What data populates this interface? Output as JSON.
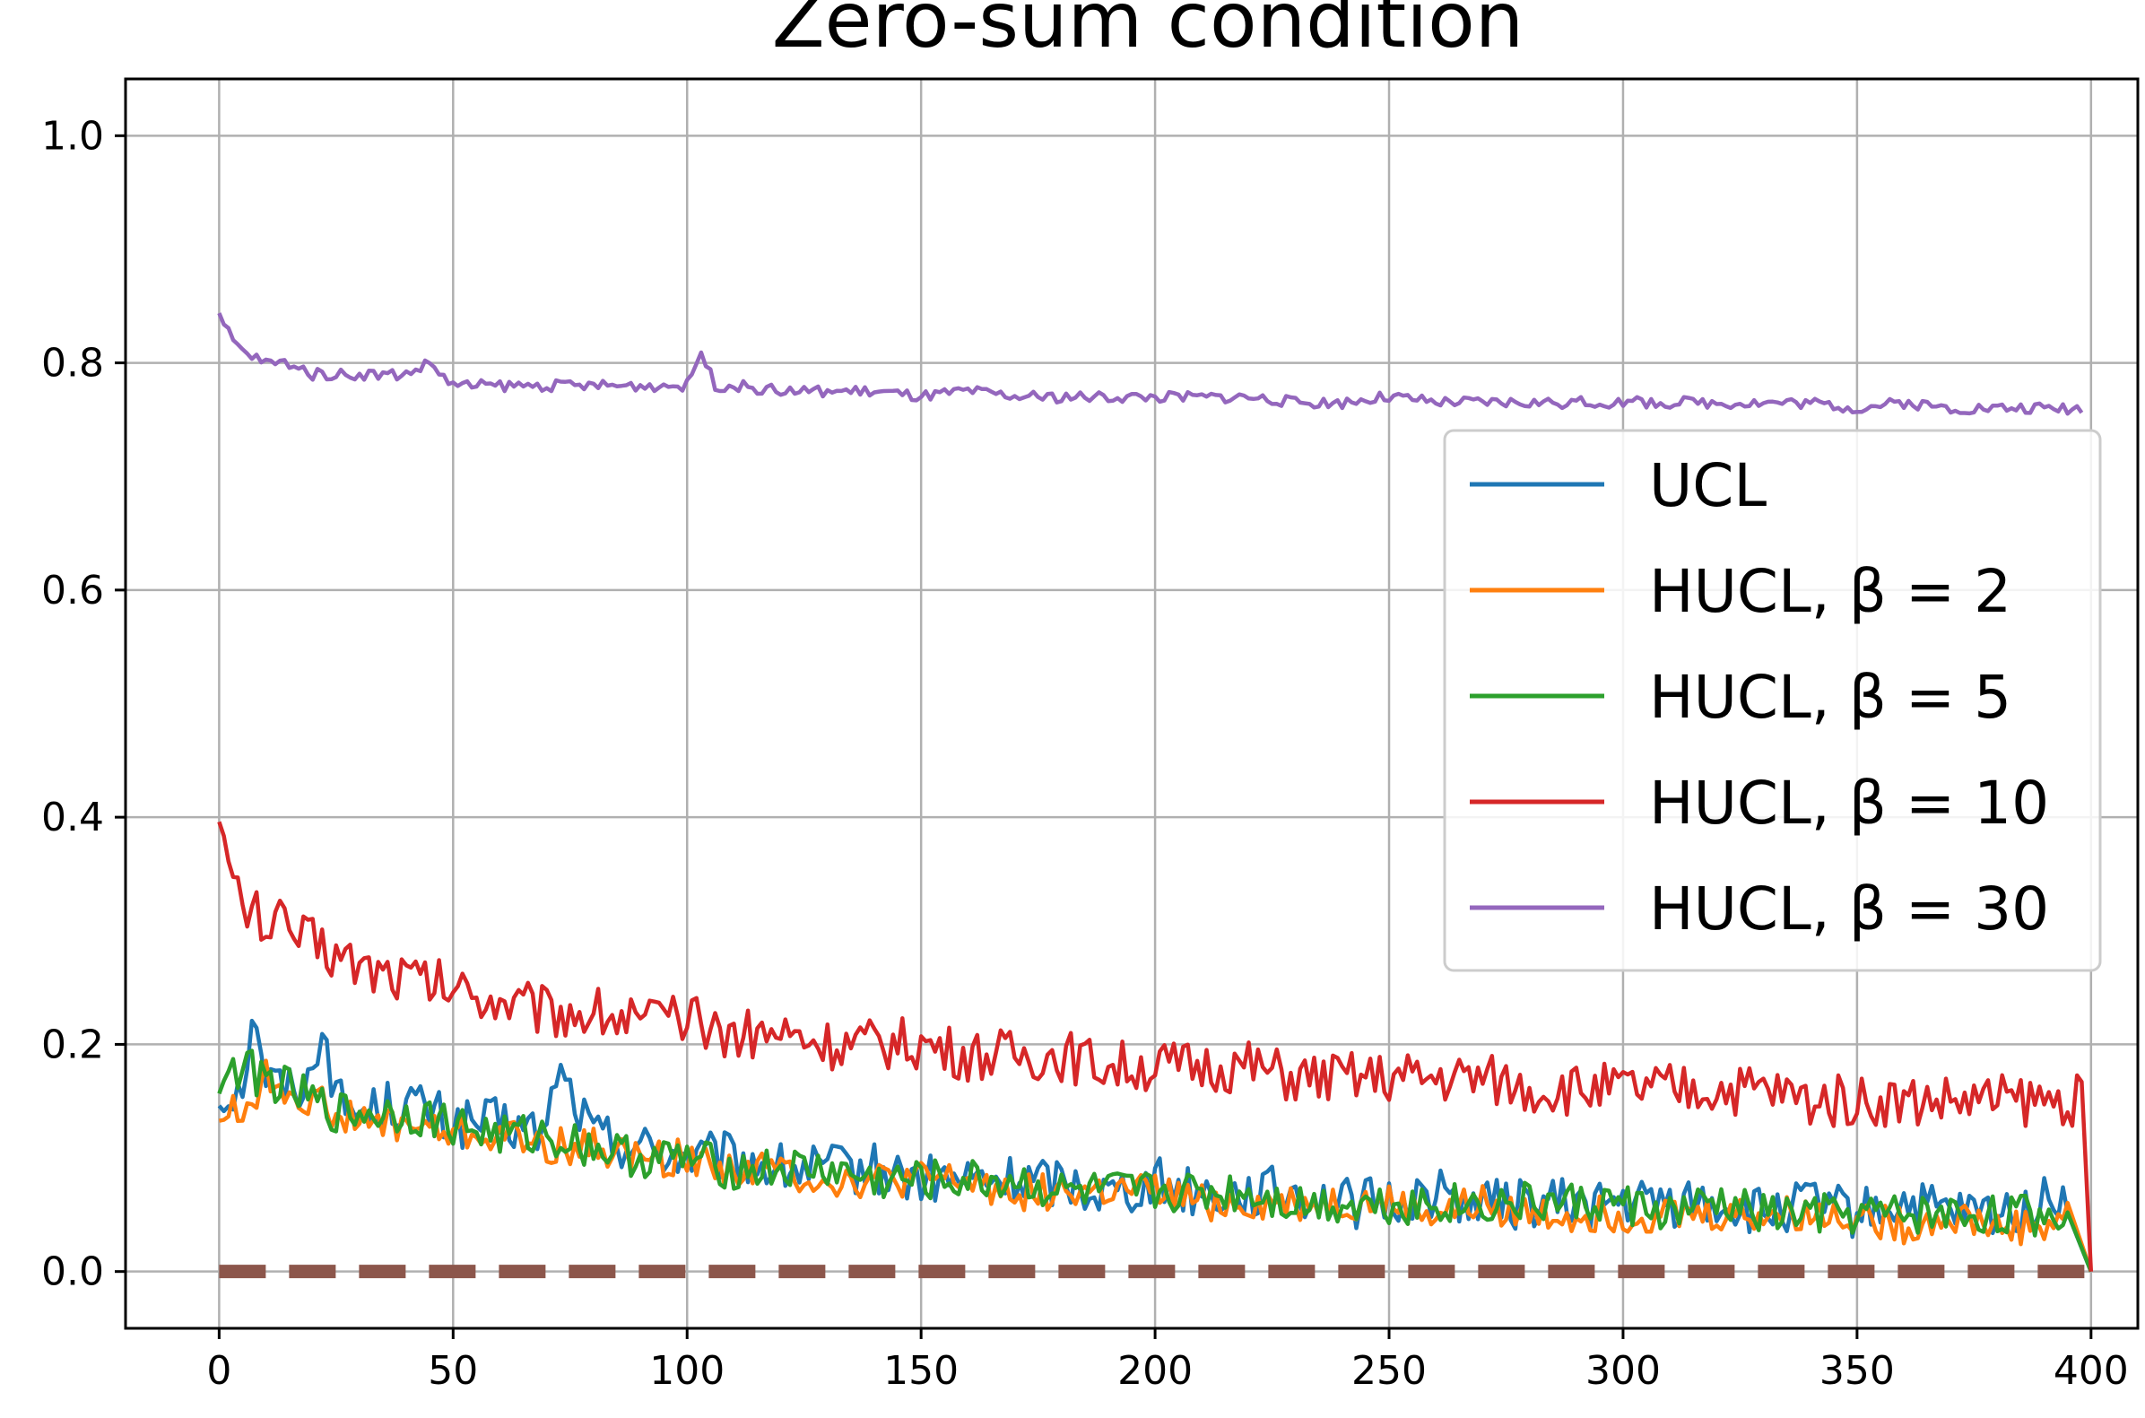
{
  "chart_data": {
    "type": "line",
    "title": "Zero-sum condition",
    "xlabel": "",
    "ylabel": "",
    "xlim": [
      -20,
      410
    ],
    "ylim": [
      -0.05,
      1.05
    ],
    "x_ticks": [
      0,
      50,
      100,
      150,
      200,
      250,
      300,
      350,
      400
    ],
    "x_tick_labels": [
      "0",
      "50",
      "100",
      "150",
      "200",
      "250",
      "300",
      "350",
      "400"
    ],
    "y_ticks": [
      0.0,
      0.2,
      0.4,
      0.6,
      0.8,
      1.0
    ],
    "y_tick_labels": [
      "0.0",
      "0.2",
      "0.4",
      "0.6",
      "0.8",
      "1.0"
    ],
    "grid": true,
    "legend_position": "right",
    "series": [
      {
        "name": "UCL",
        "color": "#1f77b4",
        "x": [
          0,
          5,
          8,
          10,
          15,
          20,
          22,
          25,
          30,
          40,
          50,
          60,
          70,
          72,
          80,
          90,
          100,
          110,
          120,
          130,
          140,
          150,
          160,
          170,
          180,
          190,
          200,
          210,
          220,
          230,
          240,
          250,
          260,
          270,
          280,
          290,
          300,
          310,
          320,
          330,
          340,
          350,
          360,
          370,
          380,
          390,
          395,
          400
        ],
        "y": [
          0.15,
          0.17,
          0.23,
          0.17,
          0.16,
          0.17,
          0.23,
          0.15,
          0.14,
          0.15,
          0.13,
          0.13,
          0.12,
          0.18,
          0.12,
          0.11,
          0.1,
          0.1,
          0.09,
          0.09,
          0.09,
          0.08,
          0.08,
          0.08,
          0.08,
          0.07,
          0.08,
          0.07,
          0.07,
          0.07,
          0.06,
          0.06,
          0.07,
          0.06,
          0.06,
          0.06,
          0.06,
          0.06,
          0.06,
          0.05,
          0.06,
          0.05,
          0.06,
          0.05,
          0.05,
          0.06,
          0.07,
          0.0
        ]
      },
      {
        "name": "HUCL, β = 2",
        "color": "#ff7f0e",
        "x": [
          0,
          5,
          10,
          15,
          20,
          25,
          30,
          40,
          50,
          60,
          70,
          80,
          90,
          100,
          110,
          120,
          130,
          140,
          150,
          160,
          170,
          180,
          190,
          200,
          210,
          220,
          230,
          240,
          250,
          260,
          270,
          280,
          290,
          300,
          310,
          320,
          330,
          340,
          350,
          360,
          370,
          380,
          390,
          395,
          400
        ],
        "y": [
          0.14,
          0.14,
          0.17,
          0.16,
          0.15,
          0.14,
          0.13,
          0.13,
          0.12,
          0.12,
          0.11,
          0.11,
          0.1,
          0.1,
          0.09,
          0.09,
          0.08,
          0.08,
          0.08,
          0.08,
          0.07,
          0.07,
          0.07,
          0.07,
          0.06,
          0.06,
          0.06,
          0.06,
          0.06,
          0.05,
          0.06,
          0.05,
          0.05,
          0.05,
          0.05,
          0.05,
          0.05,
          0.05,
          0.05,
          0.04,
          0.05,
          0.04,
          0.04,
          0.05,
          0.0
        ]
      },
      {
        "name": "HUCL, β = 5",
        "color": "#2ca02c",
        "x": [
          0,
          5,
          10,
          15,
          20,
          25,
          30,
          40,
          50,
          60,
          70,
          80,
          90,
          100,
          110,
          120,
          130,
          140,
          150,
          160,
          170,
          180,
          190,
          200,
          210,
          220,
          230,
          240,
          250,
          260,
          270,
          280,
          290,
          300,
          310,
          320,
          330,
          340,
          350,
          360,
          370,
          380,
          390,
          395,
          400
        ],
        "y": [
          0.17,
          0.18,
          0.17,
          0.16,
          0.15,
          0.14,
          0.14,
          0.14,
          0.13,
          0.12,
          0.12,
          0.11,
          0.1,
          0.1,
          0.09,
          0.09,
          0.09,
          0.08,
          0.08,
          0.08,
          0.08,
          0.07,
          0.07,
          0.07,
          0.07,
          0.07,
          0.06,
          0.06,
          0.06,
          0.06,
          0.06,
          0.06,
          0.06,
          0.06,
          0.05,
          0.06,
          0.05,
          0.05,
          0.05,
          0.05,
          0.05,
          0.05,
          0.05,
          0.05,
          0.0
        ]
      },
      {
        "name": "HUCL, β = 10",
        "color": "#d62728",
        "x": [
          0,
          2,
          5,
          10,
          15,
          20,
          25,
          30,
          40,
          50,
          60,
          70,
          80,
          90,
          100,
          110,
          120,
          130,
          140,
          150,
          160,
          170,
          180,
          190,
          200,
          210,
          220,
          230,
          240,
          250,
          260,
          270,
          280,
          290,
          300,
          310,
          320,
          330,
          340,
          350,
          360,
          370,
          380,
          390,
          398,
          400
        ],
        "y": [
          0.42,
          0.35,
          0.32,
          0.31,
          0.3,
          0.29,
          0.28,
          0.27,
          0.26,
          0.25,
          0.24,
          0.23,
          0.23,
          0.22,
          0.22,
          0.21,
          0.21,
          0.2,
          0.2,
          0.2,
          0.19,
          0.19,
          0.19,
          0.18,
          0.18,
          0.18,
          0.18,
          0.17,
          0.17,
          0.17,
          0.17,
          0.17,
          0.16,
          0.16,
          0.16,
          0.16,
          0.16,
          0.16,
          0.15,
          0.15,
          0.15,
          0.15,
          0.15,
          0.15,
          0.15,
          0.0
        ]
      },
      {
        "name": "HUCL, β = 30",
        "color": "#9467bd",
        "x": [
          0,
          3,
          5,
          10,
          15,
          20,
          25,
          30,
          40,
          45,
          50,
          60,
          70,
          80,
          90,
          100,
          103,
          106,
          110,
          120,
          130,
          140,
          150,
          160,
          170,
          180,
          190,
          200,
          210,
          220,
          230,
          240,
          250,
          260,
          270,
          280,
          290,
          300,
          310,
          320,
          330,
          340,
          350,
          360,
          370,
          380,
          390,
          398
        ],
        "y": [
          0.84,
          0.82,
          0.81,
          0.8,
          0.8,
          0.79,
          0.79,
          0.79,
          0.79,
          0.8,
          0.78,
          0.78,
          0.78,
          0.78,
          0.78,
          0.78,
          0.81,
          0.78,
          0.78,
          0.775,
          0.775,
          0.775,
          0.77,
          0.775,
          0.77,
          0.77,
          0.77,
          0.77,
          0.77,
          0.77,
          0.765,
          0.765,
          0.77,
          0.765,
          0.765,
          0.765,
          0.765,
          0.765,
          0.765,
          0.765,
          0.765,
          0.765,
          0.76,
          0.765,
          0.76,
          0.76,
          0.76,
          0.76
        ]
      },
      {
        "name": "",
        "color": "#8c564b",
        "style": "dashed",
        "x": [
          0,
          400
        ],
        "y": [
          0.0,
          0.0
        ]
      }
    ]
  }
}
